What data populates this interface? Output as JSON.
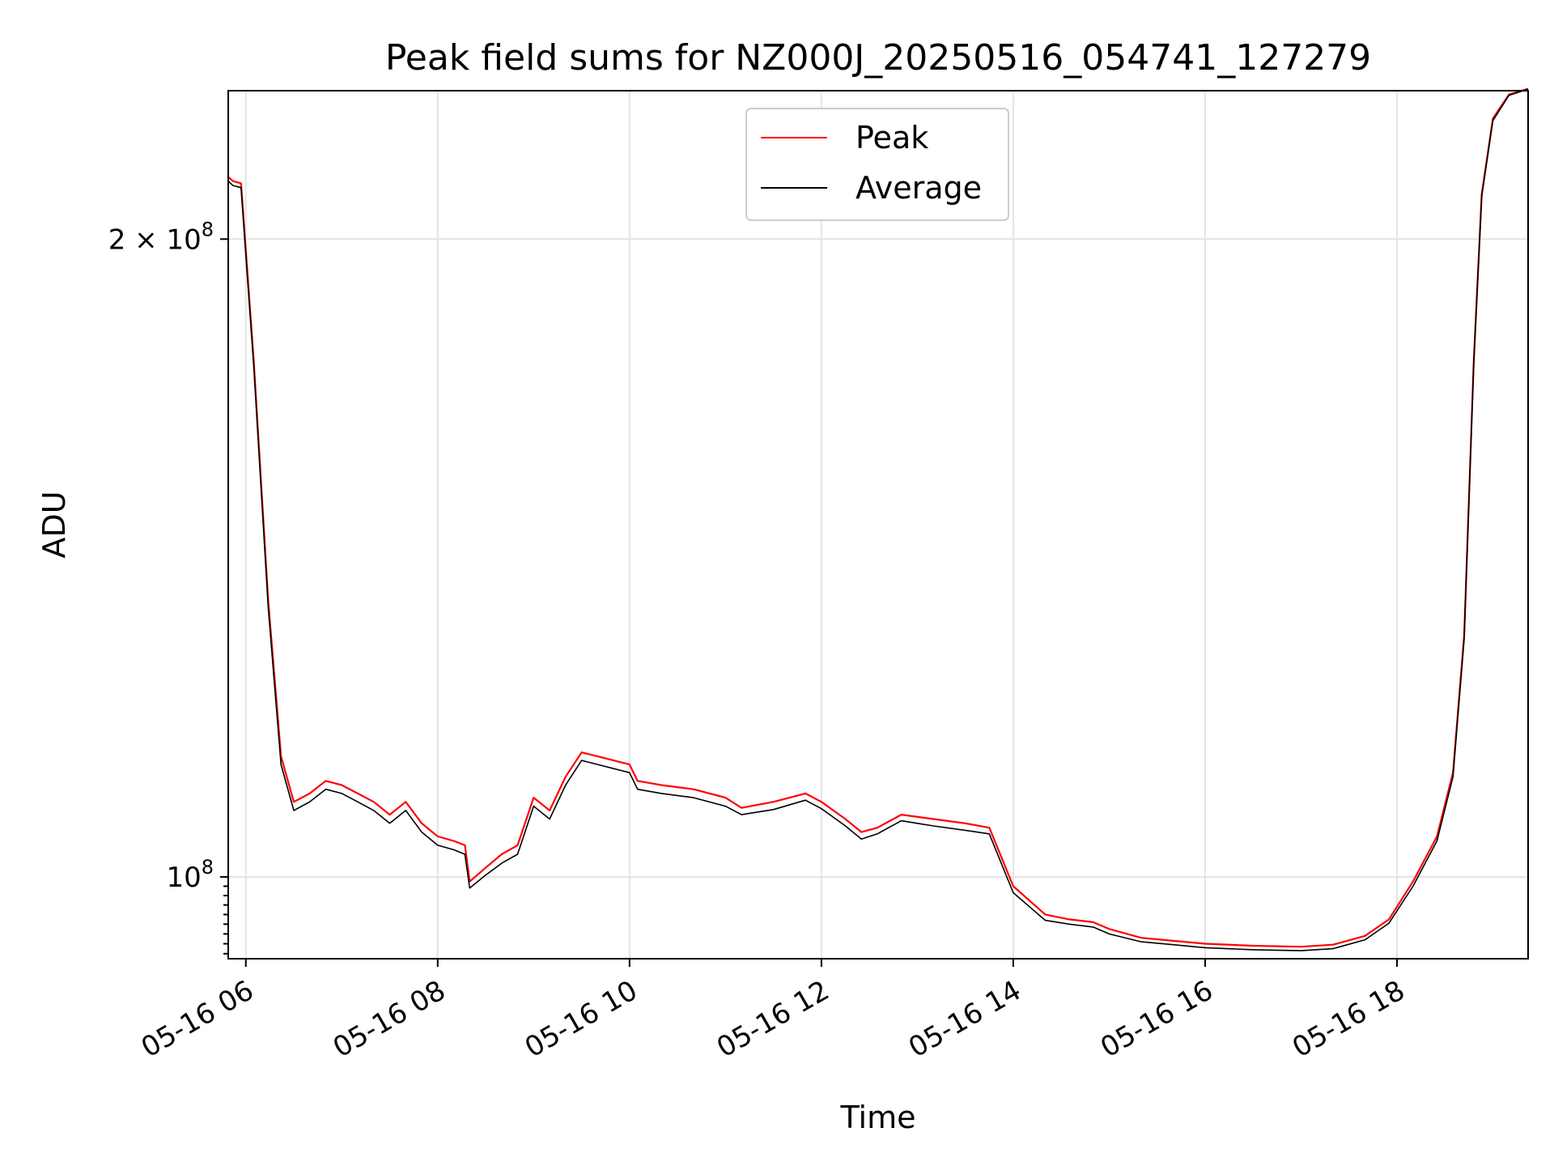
{
  "chart_data": {
    "type": "line",
    "title": "Peak field sums for NZ000J_20250516_054741_127279",
    "xlabel": "Time",
    "ylabel": "ADU",
    "y_scale": "log",
    "xlim": [
      "2025-05-16 05:49",
      "2025-05-16 19:22"
    ],
    "ylim": [
      91500000,
      235000000
    ],
    "grid": true,
    "legend_position": "top-center",
    "x_ticks": [
      {
        "value": "2025-05-16 06:00",
        "label": "05-16 06"
      },
      {
        "value": "2025-05-16 08:00",
        "label": "05-16 08"
      },
      {
        "value": "2025-05-16 10:00",
        "label": "05-16 10"
      },
      {
        "value": "2025-05-16 12:00",
        "label": "05-16 12"
      },
      {
        "value": "2025-05-16 14:00",
        "label": "05-16 14"
      },
      {
        "value": "2025-05-16 16:00",
        "label": "05-16 16"
      },
      {
        "value": "2025-05-16 18:00",
        "label": "05-16 18"
      }
    ],
    "y_ticks": [
      {
        "value": 200000000,
        "label_base": "2 × 10",
        "label_exp": "8"
      },
      {
        "value": 100000000,
        "label_base": "10",
        "label_exp": "8"
      }
    ],
    "series": [
      {
        "name": "Peak",
        "color": "#ff0000",
        "points": [
          [
            "2025-05-16 05:49",
            214000000
          ],
          [
            "2025-05-16 05:52",
            213000000
          ],
          [
            "2025-05-16 05:57",
            212500000
          ],
          [
            "2025-05-16 06:05",
            175000000
          ],
          [
            "2025-05-16 06:14",
            135000000
          ],
          [
            "2025-05-16 06:22",
            114000000
          ],
          [
            "2025-05-16 06:30",
            108500000
          ],
          [
            "2025-05-16 06:40",
            109500000
          ],
          [
            "2025-05-16 06:50",
            111000000
          ],
          [
            "2025-05-16 07:00",
            110500000
          ],
          [
            "2025-05-16 07:10",
            109500000
          ],
          [
            "2025-05-16 07:20",
            108500000
          ],
          [
            "2025-05-16 07:30",
            107000000
          ],
          [
            "2025-05-16 07:40",
            108500000
          ],
          [
            "2025-05-16 07:50",
            106000000
          ],
          [
            "2025-05-16 08:00",
            104500000
          ],
          [
            "2025-05-16 08:10",
            104000000
          ],
          [
            "2025-05-16 08:17",
            103500000
          ],
          [
            "2025-05-16 08:20",
            99500000
          ],
          [
            "2025-05-16 08:30",
            101000000
          ],
          [
            "2025-05-16 08:40",
            102500000
          ],
          [
            "2025-05-16 08:50",
            103500000
          ],
          [
            "2025-05-16 09:00",
            109000000
          ],
          [
            "2025-05-16 09:10",
            107500000
          ],
          [
            "2025-05-16 09:20",
            111500000
          ],
          [
            "2025-05-16 09:30",
            114500000
          ],
          [
            "2025-05-16 09:40",
            114000000
          ],
          [
            "2025-05-16 09:50",
            113500000
          ],
          [
            "2025-05-16 10:00",
            113000000
          ],
          [
            "2025-05-16 10:05",
            111000000
          ],
          [
            "2025-05-16 10:20",
            110500000
          ],
          [
            "2025-05-16 10:40",
            110000000
          ],
          [
            "2025-05-16 11:00",
            109000000
          ],
          [
            "2025-05-16 11:10",
            107800000
          ],
          [
            "2025-05-16 11:30",
            108500000
          ],
          [
            "2025-05-16 11:50",
            109500000
          ],
          [
            "2025-05-16 12:00",
            108500000
          ],
          [
            "2025-05-16 12:15",
            106500000
          ],
          [
            "2025-05-16 12:25",
            105000000
          ],
          [
            "2025-05-16 12:35",
            105500000
          ],
          [
            "2025-05-16 12:50",
            107000000
          ],
          [
            "2025-05-16 13:10",
            106500000
          ],
          [
            "2025-05-16 13:30",
            106000000
          ],
          [
            "2025-05-16 13:45",
            105500000
          ],
          [
            "2025-05-16 14:00",
            99000000
          ],
          [
            "2025-05-16 14:20",
            96000000
          ],
          [
            "2025-05-16 14:35",
            95500000
          ],
          [
            "2025-05-16 14:50",
            95200000
          ],
          [
            "2025-05-16 15:00",
            94500000
          ],
          [
            "2025-05-16 15:20",
            93600000
          ],
          [
            "2025-05-16 15:40",
            93300000
          ],
          [
            "2025-05-16 16:00",
            93000000
          ],
          [
            "2025-05-16 16:30",
            92800000
          ],
          [
            "2025-05-16 17:00",
            92700000
          ],
          [
            "2025-05-16 17:20",
            92900000
          ],
          [
            "2025-05-16 17:40",
            93800000
          ],
          [
            "2025-05-16 17:55",
            95500000
          ],
          [
            "2025-05-16 18:10",
            99500000
          ],
          [
            "2025-05-16 18:25",
            104500000
          ],
          [
            "2025-05-16 18:35",
            112000000
          ],
          [
            "2025-05-16 18:42",
            130000000
          ],
          [
            "2025-05-16 18:48",
            175000000
          ],
          [
            "2025-05-16 18:53",
            210000000
          ],
          [
            "2025-05-16 19:00",
            228000000
          ],
          [
            "2025-05-16 19:10",
            234000000
          ],
          [
            "2025-05-16 19:22",
            235500000
          ]
        ]
      },
      {
        "name": "Average",
        "color": "#000000",
        "points": [
          [
            "2025-05-16 05:49",
            213000000
          ],
          [
            "2025-05-16 05:52",
            212000000
          ],
          [
            "2025-05-16 05:57",
            211500000
          ],
          [
            "2025-05-16 06:05",
            174000000
          ],
          [
            "2025-05-16 06:14",
            134000000
          ],
          [
            "2025-05-16 06:22",
            113000000
          ],
          [
            "2025-05-16 06:30",
            107500000
          ],
          [
            "2025-05-16 06:40",
            108500000
          ],
          [
            "2025-05-16 06:50",
            110000000
          ],
          [
            "2025-05-16 07:00",
            109500000
          ],
          [
            "2025-05-16 07:10",
            108500000
          ],
          [
            "2025-05-16 07:20",
            107500000
          ],
          [
            "2025-05-16 07:30",
            106000000
          ],
          [
            "2025-05-16 07:40",
            107500000
          ],
          [
            "2025-05-16 07:50",
            105000000
          ],
          [
            "2025-05-16 08:00",
            103500000
          ],
          [
            "2025-05-16 08:10",
            103000000
          ],
          [
            "2025-05-16 08:17",
            102500000
          ],
          [
            "2025-05-16 08:20",
            98800000
          ],
          [
            "2025-05-16 08:30",
            100200000
          ],
          [
            "2025-05-16 08:40",
            101500000
          ],
          [
            "2025-05-16 08:50",
            102500000
          ],
          [
            "2025-05-16 09:00",
            108000000
          ],
          [
            "2025-05-16 09:10",
            106500000
          ],
          [
            "2025-05-16 09:20",
            110500000
          ],
          [
            "2025-05-16 09:30",
            113500000
          ],
          [
            "2025-05-16 09:40",
            113000000
          ],
          [
            "2025-05-16 09:50",
            112500000
          ],
          [
            "2025-05-16 10:00",
            112000000
          ],
          [
            "2025-05-16 10:05",
            110000000
          ],
          [
            "2025-05-16 10:20",
            109500000
          ],
          [
            "2025-05-16 10:40",
            109000000
          ],
          [
            "2025-05-16 11:00",
            108000000
          ],
          [
            "2025-05-16 11:10",
            107000000
          ],
          [
            "2025-05-16 11:30",
            107600000
          ],
          [
            "2025-05-16 11:50",
            108700000
          ],
          [
            "2025-05-16 12:00",
            107700000
          ],
          [
            "2025-05-16 12:15",
            105700000
          ],
          [
            "2025-05-16 12:25",
            104200000
          ],
          [
            "2025-05-16 12:35",
            104800000
          ],
          [
            "2025-05-16 12:50",
            106300000
          ],
          [
            "2025-05-16 13:10",
            105700000
          ],
          [
            "2025-05-16 13:30",
            105200000
          ],
          [
            "2025-05-16 13:45",
            104800000
          ],
          [
            "2025-05-16 14:00",
            98300000
          ],
          [
            "2025-05-16 14:20",
            95400000
          ],
          [
            "2025-05-16 14:35",
            95000000
          ],
          [
            "2025-05-16 14:50",
            94700000
          ],
          [
            "2025-05-16 15:00",
            94000000
          ],
          [
            "2025-05-16 15:20",
            93200000
          ],
          [
            "2025-05-16 15:40",
            92900000
          ],
          [
            "2025-05-16 16:00",
            92600000
          ],
          [
            "2025-05-16 16:30",
            92400000
          ],
          [
            "2025-05-16 17:00",
            92300000
          ],
          [
            "2025-05-16 17:20",
            92500000
          ],
          [
            "2025-05-16 17:40",
            93400000
          ],
          [
            "2025-05-16 17:55",
            95100000
          ],
          [
            "2025-05-16 18:10",
            99000000
          ],
          [
            "2025-05-16 18:25",
            104000000
          ],
          [
            "2025-05-16 18:35",
            111500000
          ],
          [
            "2025-05-16 18:42",
            129500000
          ],
          [
            "2025-05-16 18:48",
            174500000
          ],
          [
            "2025-05-16 18:53",
            209500000
          ],
          [
            "2025-05-16 19:00",
            227500000
          ],
          [
            "2025-05-16 19:10",
            233800000
          ],
          [
            "2025-05-16 19:22",
            235400000
          ]
        ]
      }
    ]
  }
}
